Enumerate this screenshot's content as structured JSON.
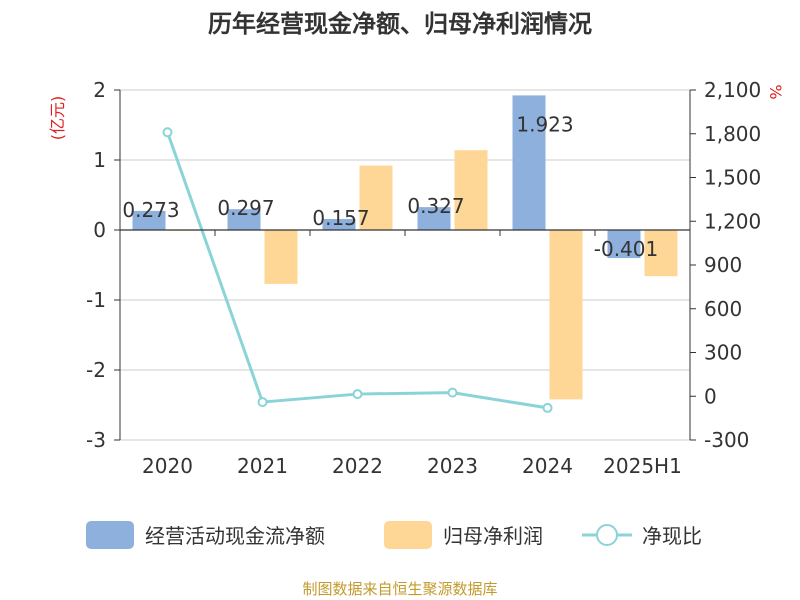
{
  "chart_data": {
    "type": "bar",
    "title": "历年经营现金净额、归母净利润情况",
    "categories": [
      "2020",
      "2021",
      "2022",
      "2023",
      "2024",
      "2025H1"
    ],
    "left_axis": {
      "unit": "(亿元)",
      "ylim": [
        -3,
        2
      ],
      "ticks": [
        "2",
        "1",
        "0",
        "-1",
        "-2",
        "-3"
      ]
    },
    "right_axis": {
      "unit": "%",
      "ylim": [
        -300,
        2100
      ],
      "ticks": [
        "2,100",
        "1,800",
        "1,500",
        "1,200",
        "900",
        "600",
        "300",
        "0",
        "-300"
      ]
    },
    "series": [
      {
        "name": "经营活动现金流净额",
        "type": "bar",
        "axis": "left",
        "color": "#8eb0dc",
        "values": [
          0.273,
          0.297,
          0.157,
          0.327,
          1.923,
          -0.401
        ],
        "labels": [
          "0.273",
          "0.297",
          "0.157",
          "0.327",
          "1.923",
          "-0.401"
        ]
      },
      {
        "name": "归母净利润",
        "type": "bar",
        "axis": "left",
        "color": "#fed796",
        "values": [
          0.0,
          -0.77,
          0.92,
          1.14,
          -2.42,
          -0.66
        ]
      },
      {
        "name": "净现比",
        "type": "line",
        "axis": "right",
        "color": "#8ad4d8",
        "values": [
          1810,
          -40,
          15,
          25,
          -80,
          null
        ]
      }
    ],
    "legend_position": "bottom",
    "grid": true,
    "unit_color": "#e02020"
  },
  "source_text": "制图数据来自恒生聚源数据库",
  "source_color": "#c49a2c"
}
